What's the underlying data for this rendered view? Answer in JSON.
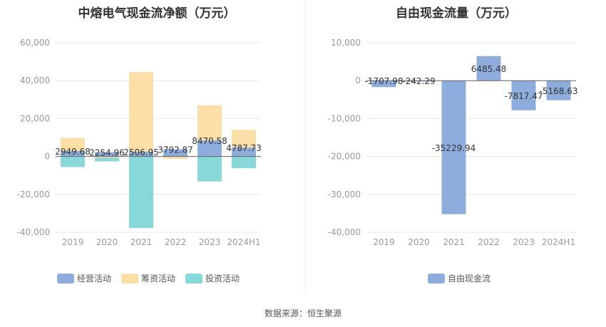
{
  "source_text": "数据来源：恒生聚源",
  "colors": {
    "operating": "#8eaddd",
    "financing": "#fcdfa6",
    "investing": "#88d7d9",
    "fcf": "#8eaddd",
    "grid": "#e6e6e6",
    "axis_text": "#999999",
    "label_text": "#333333"
  },
  "chart_data": [
    {
      "type": "bar",
      "title": "中熔电气现金流净额（万元）",
      "categories": [
        "2019",
        "2020",
        "2021",
        "2022",
        "2023",
        "2024H1"
      ],
      "series": [
        {
          "name": "经营活动",
          "values": [
            2949.68,
            2254.96,
            2506.95,
            3792.87,
            8470.58,
            4787.73
          ]
        },
        {
          "name": "筹资活动",
          "values": [
            6800,
            -700,
            42000,
            -1300,
            18500,
            9200
          ]
        },
        {
          "name": "投资活动",
          "values": [
            -5600,
            -1900,
            -37800,
            0,
            -13200,
            -6200
          ]
        }
      ],
      "data_labels": [
        "2949.68",
        "2254.96",
        "2506.95",
        "3792.87",
        "8470.58",
        "4787.73"
      ],
      "yticks": [
        "60,000",
        "40,000",
        "20,000",
        "0",
        "-20,000",
        "-40,000"
      ],
      "ylim": [
        -40000,
        60000
      ],
      "grid": true,
      "legend": "bottom"
    },
    {
      "type": "bar",
      "title": "自由现金流量（万元）",
      "categories": [
        "2019",
        "2020",
        "2021",
        "2022",
        "2023",
        "2024H1"
      ],
      "series": [
        {
          "name": "自由现金流",
          "values": [
            -1707.98,
            -242.29,
            -35229.94,
            6485.48,
            -7817.47,
            -5168.63
          ]
        }
      ],
      "data_labels": [
        "-1707.98",
        "-242.29",
        "-35229.94",
        "6485.48",
        "-7817.47",
        "-5168.63"
      ],
      "yticks": [
        "10,000",
        "0",
        "-10,000",
        "-20,000",
        "-30,000",
        "-40,000"
      ],
      "ylim": [
        -40000,
        10000
      ],
      "grid": true,
      "legend": "bottom"
    }
  ]
}
